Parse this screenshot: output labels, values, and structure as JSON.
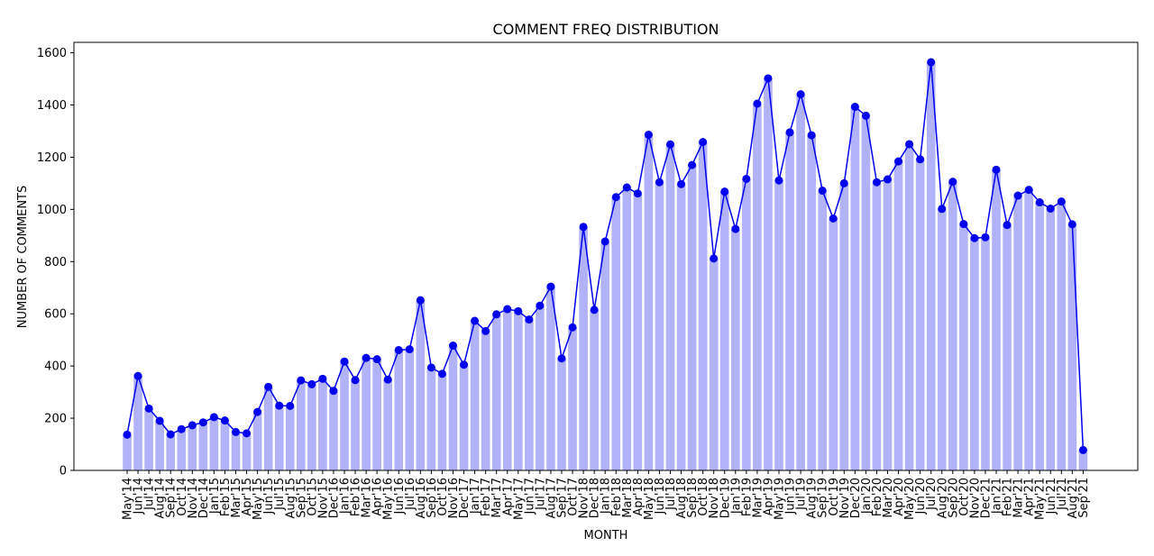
{
  "chart_data": {
    "type": "bar",
    "title": "COMMENT FREQ DISTRIBUTION",
    "xlabel": "MONTH",
    "ylabel": "NUMBER OF COMMENTS",
    "ylim": [
      0,
      1600
    ],
    "yticks": [
      0,
      200,
      400,
      600,
      800,
      1000,
      1200,
      1400,
      1600
    ],
    "grid": false,
    "bar_color": "#b2b2f8",
    "line_color": "#0000ee",
    "categories": [
      "May'14",
      "Jun'14",
      "Jul'14",
      "Aug'14",
      "Sep'14",
      "Oct'14",
      "Nov'14",
      "Dec'14",
      "Jan'15",
      "Feb'15",
      "Mar'15",
      "Apr'15",
      "May'15",
      "Jun'15",
      "Jul'15",
      "Aug'15",
      "Sep'15",
      "Oct'15",
      "Nov'15",
      "Dec'16",
      "Jan'16",
      "Feb'16",
      "Mar'16",
      "Apr'16",
      "May'16",
      "Jun'16",
      "Jul'16",
      "Aug'16",
      "Sep'16",
      "Oct'16",
      "Nov'16",
      "Dec'17",
      "Jan'17",
      "Feb'17",
      "Mar'17",
      "Apr'17",
      "May'17",
      "Jun'17",
      "Jul'17",
      "Aug'17",
      "Sep'17",
      "Oct'17",
      "Nov'18",
      "Dec'18",
      "Jan'18",
      "Feb'18",
      "Mar'18",
      "Apr'18",
      "May'18",
      "Jun'18",
      "Jul'18",
      "Aug'18",
      "Sep'18",
      "Oct'18",
      "Nov'18",
      "Dec'19",
      "Jan'19",
      "Feb'19",
      "Mar'19",
      "Apr'19",
      "May'19",
      "Jun'19",
      "Jul'19",
      "Aug'19",
      "Sep'19",
      "Oct'19",
      "Nov'19",
      "Dec'20",
      "Jan'20",
      "Feb'20",
      "Mar'20",
      "Apr'20",
      "May'20",
      "Jun'20",
      "Jul'20",
      "Aug'20",
      "Sep'20",
      "Oct'20",
      "Nov'20",
      "Dec'21",
      "Jan'21",
      "Feb'21",
      "Mar'21",
      "Apr'21",
      "May'21",
      "Jun'21",
      "Jul'21",
      "Aug'21",
      "Sep'21"
    ],
    "values": [
      137,
      362,
      237,
      190,
      138,
      158,
      173,
      184,
      204,
      191,
      147,
      142,
      224,
      320,
      248,
      247,
      345,
      330,
      351,
      305,
      417,
      346,
      431,
      426,
      348,
      461,
      464,
      652,
      394,
      370,
      478,
      405,
      573,
      534,
      598,
      618,
      610,
      578,
      631,
      704,
      429,
      548,
      933,
      615,
      877,
      1047,
      1084,
      1061,
      1286,
      1104,
      1249,
      1097,
      1170,
      1258,
      812,
      1068,
      925,
      1117,
      1405,
      1502,
      1111,
      1295,
      1441,
      1284,
      1072,
      965,
      1100,
      1393,
      1359,
      1104,
      1115,
      1184,
      1250,
      1192,
      1564,
      1002,
      1106,
      944,
      890,
      893,
      1152,
      940,
      1053,
      1075,
      1027,
      1003,
      1030,
      943,
      78
    ]
  }
}
